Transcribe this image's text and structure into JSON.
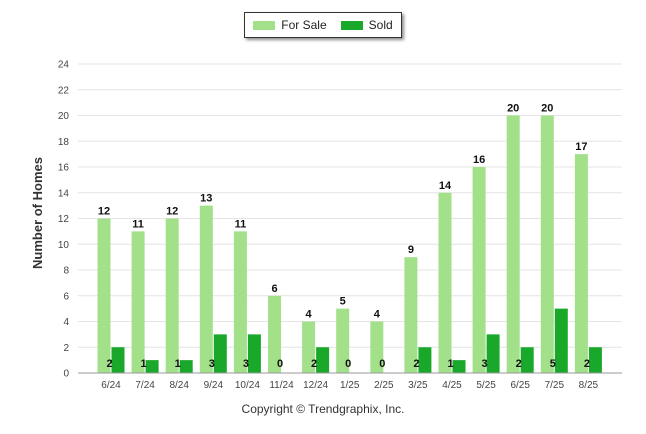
{
  "colors": {
    "for_sale": "#a2e08a",
    "sold": "#1aa82b",
    "grid": "#e4e4e4",
    "axis": "#333333"
  },
  "legend": {
    "for_sale": "For Sale",
    "sold": "Sold"
  },
  "footer": {
    "copyright": "Copyright © Trendgraphix, Inc."
  },
  "chart_data": {
    "type": "bar",
    "title": "",
    "xlabel": "",
    "ylabel": "Number of Homes",
    "ylim": [
      0,
      24
    ],
    "yticks": [
      0,
      2,
      4,
      6,
      8,
      10,
      12,
      14,
      16,
      18,
      20,
      22,
      24
    ],
    "grid": true,
    "legend_position": "top-center",
    "categories": [
      "6/24",
      "7/24",
      "8/24",
      "9/24",
      "10/24",
      "11/24",
      "12/24",
      "1/25",
      "2/25",
      "3/25",
      "4/25",
      "5/25",
      "6/25",
      "7/25",
      "8/25"
    ],
    "series": [
      {
        "name": "For Sale",
        "values": [
          12,
          11,
          12,
          13,
          11,
          6,
          4,
          5,
          4,
          9,
          14,
          16,
          20,
          20,
          17
        ]
      },
      {
        "name": "Sold",
        "values": [
          2,
          1,
          1,
          3,
          3,
          0,
          2,
          0,
          0,
          2,
          1,
          3,
          2,
          5,
          2
        ]
      }
    ]
  }
}
